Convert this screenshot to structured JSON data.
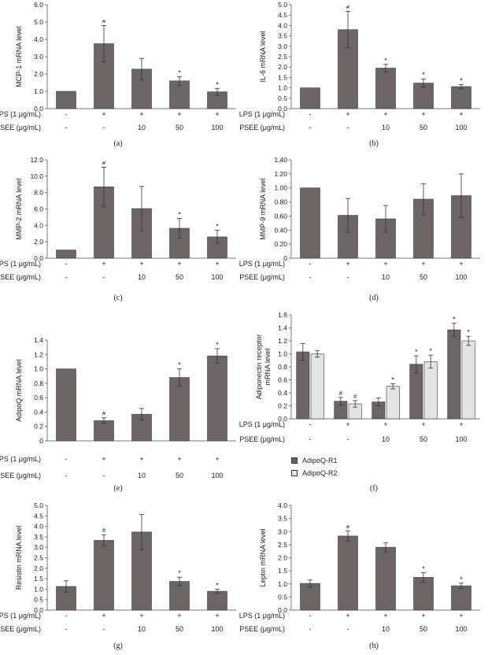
{
  "colors": {
    "bar_dark": "#6b6566",
    "bar_light": "#e4e4e4",
    "axis": "#7a7a7a",
    "text": "#222222"
  },
  "row_labels": {
    "lps": "LPS (1 μg/mL)",
    "psee": "PSEE (μg/mL)"
  },
  "chart_data": [
    {
      "id": "a",
      "type": "bar",
      "panel_label": "(a)",
      "ylabel": "MCP-1 mRNA level",
      "ylim": [
        0,
        6
      ],
      "yticks": [
        "0.0",
        "1.0",
        "2.0",
        "3.0",
        "4.0",
        "5.0",
        "6.0"
      ],
      "categories": [
        "1",
        "2",
        "3",
        "4",
        "5"
      ],
      "lps": [
        "-",
        "+",
        "+",
        "+",
        "+"
      ],
      "psee": [
        "-",
        "-",
        "10",
        "50",
        "100"
      ],
      "series": [
        {
          "name": "",
          "values": [
            1.0,
            3.75,
            2.28,
            1.6,
            0.97
          ],
          "errors": [
            0,
            1.05,
            0.62,
            0.25,
            0.2
          ]
        }
      ],
      "marks": [
        "",
        "#",
        "",
        "*",
        "*"
      ]
    },
    {
      "id": "b",
      "type": "bar",
      "panel_label": "(b)",
      "ylabel": "IL-6 mRNA level",
      "ylim": [
        0,
        5
      ],
      "yticks": [
        "0.0",
        "0.5",
        "1.0",
        "1.5",
        "2.0",
        "2.5",
        "3.0",
        "3.5",
        "4.0",
        "4.5",
        "5.0"
      ],
      "categories": [
        "1",
        "2",
        "3",
        "4",
        "5"
      ],
      "lps": [
        "-",
        "+",
        "+",
        "+",
        "+"
      ],
      "psee": [
        "-",
        "-",
        "10",
        "50",
        "100"
      ],
      "series": [
        {
          "name": "",
          "values": [
            1.0,
            3.8,
            1.95,
            1.23,
            1.06
          ],
          "errors": [
            0,
            0.88,
            0.18,
            0.2,
            0.1
          ]
        }
      ],
      "marks": [
        "",
        "#",
        "*",
        "*",
        "*"
      ]
    },
    {
      "id": "c",
      "type": "bar",
      "panel_label": "(c)",
      "ylabel": "MMP-2 mRNA level",
      "ylim": [
        0,
        12
      ],
      "yticks": [
        "0.0",
        "2.0",
        "4.0",
        "6.0",
        "8.0",
        "10.0",
        "12.0"
      ],
      "categories": [
        "1",
        "2",
        "3",
        "4",
        "5"
      ],
      "lps": [
        "-",
        "+",
        "+",
        "+",
        "+"
      ],
      "psee": [
        "-",
        "-",
        "10",
        "50",
        "100"
      ],
      "series": [
        {
          "name": "",
          "values": [
            1.0,
            8.7,
            6.05,
            3.65,
            2.6
          ],
          "errors": [
            0,
            2.4,
            2.7,
            1.2,
            0.8
          ]
        }
      ],
      "marks": [
        "",
        "#",
        "",
        "*",
        "*"
      ]
    },
    {
      "id": "d",
      "type": "bar",
      "panel_label": "(d)",
      "ylabel": "MMP-9 mRNA level",
      "ylim": [
        0,
        1.4
      ],
      "yticks": [
        "0",
        "0.20",
        "0.40",
        "0.60",
        "0.80",
        "1.00",
        "1.20",
        "1.40"
      ],
      "categories": [
        "1",
        "2",
        "3",
        "4",
        "5"
      ],
      "lps": [
        "-",
        "+",
        "+",
        "+",
        "+"
      ],
      "psee": [
        "-",
        "-",
        "10",
        "50",
        "100"
      ],
      "series": [
        {
          "name": "",
          "values": [
            1.0,
            0.61,
            0.56,
            0.84,
            0.89
          ],
          "errors": [
            0,
            0.24,
            0.19,
            0.22,
            0.31
          ]
        }
      ],
      "marks": [
        "",
        "",
        "",
        "",
        ""
      ]
    },
    {
      "id": "e",
      "type": "bar",
      "panel_label": "(e)",
      "ylabel": "AdipoQ mRNA level",
      "ylim": [
        0,
        1.4
      ],
      "yticks": [
        "0",
        "0.2",
        "0.4",
        "0.6",
        "0.8",
        "1.0",
        "1.2",
        "1.4"
      ],
      "categories": [
        "1",
        "2",
        "3",
        "4",
        "5"
      ],
      "lps": [
        "-",
        "+",
        "+",
        "+",
        "+"
      ],
      "psee": [
        "-",
        "-",
        "10",
        "50",
        "100"
      ],
      "series": [
        {
          "name": "",
          "values": [
            1.0,
            0.28,
            0.37,
            0.88,
            1.18
          ],
          "errors": [
            0,
            0.04,
            0.08,
            0.12,
            0.1
          ]
        }
      ],
      "marks": [
        "",
        "#",
        "",
        "*",
        "*"
      ]
    },
    {
      "id": "f",
      "type": "bar",
      "panel_label": "(f)",
      "ylabel": "Adiponectin receptor mRNA level",
      "ylabel_lines": [
        "Adiponectin receptor",
        "mRNA level"
      ],
      "ylim": [
        0,
        1.6
      ],
      "yticks": [
        "0.0",
        "0.2",
        "0.4",
        "0.6",
        "0.8",
        "1.0",
        "1.2",
        "1.4",
        "1.6"
      ],
      "categories": [
        "1",
        "2",
        "3",
        "4",
        "5"
      ],
      "lps": [
        "-",
        "+",
        "+",
        "+",
        "+"
      ],
      "psee": [
        "-",
        "-",
        "10",
        "50",
        "100"
      ],
      "series": [
        {
          "name": "AdipoQ-R1",
          "values": [
            1.03,
            0.27,
            0.26,
            0.84,
            1.37
          ],
          "errors": [
            0.13,
            0.06,
            0.06,
            0.13,
            0.1
          ]
        },
        {
          "name": "AdipoQ-R2",
          "values": [
            1.0,
            0.23,
            0.5,
            0.88,
            1.2
          ],
          "errors": [
            0.05,
            0.05,
            0.04,
            0.1,
            0.07
          ]
        }
      ],
      "marks": [
        [
          "",
          "#",
          "",
          "*",
          "*"
        ],
        [
          "",
          "#",
          "*",
          "*",
          "*"
        ]
      ]
    },
    {
      "id": "g",
      "type": "bar",
      "panel_label": "(g)",
      "ylabel": "Resistin mRNA level",
      "ylim": [
        0,
        5
      ],
      "yticks": [
        "0.0",
        "0.5",
        "1.0",
        "1.5",
        "2.0",
        "2.5",
        "3.0",
        "3.5",
        "4.0",
        "4.5",
        "5.0"
      ],
      "categories": [
        "1",
        "2",
        "3",
        "4",
        "5"
      ],
      "lps": [
        "-",
        "+",
        "+",
        "+",
        "+"
      ],
      "psee": [
        "-",
        "-",
        "10",
        "50",
        "100"
      ],
      "series": [
        {
          "name": "",
          "values": [
            1.13,
            3.33,
            3.73,
            1.37,
            0.9
          ],
          "errors": [
            0.27,
            0.27,
            0.83,
            0.2,
            0.1
          ]
        }
      ],
      "marks": [
        "",
        "#",
        "",
        "*",
        "*"
      ]
    },
    {
      "id": "h",
      "type": "bar",
      "panel_label": "(h)",
      "ylabel": "Leptin mRNA level",
      "ylim": [
        0,
        4
      ],
      "yticks": [
        "0.0",
        "0.5",
        "1.0",
        "1.5",
        "2.0",
        "2.5",
        "3.0",
        "3.5",
        "4.0"
      ],
      "categories": [
        "1",
        "2",
        "3",
        "4",
        "5"
      ],
      "lps": [
        "-",
        "+",
        "+",
        "+",
        "+"
      ],
      "psee": [
        "-",
        "-",
        "10",
        "50",
        "100"
      ],
      "series": [
        {
          "name": "",
          "values": [
            1.02,
            2.83,
            2.4,
            1.25,
            0.93
          ],
          "errors": [
            0.13,
            0.2,
            0.18,
            0.18,
            0.1
          ]
        }
      ],
      "marks": [
        "",
        "#",
        "",
        "*",
        "*"
      ]
    }
  ]
}
